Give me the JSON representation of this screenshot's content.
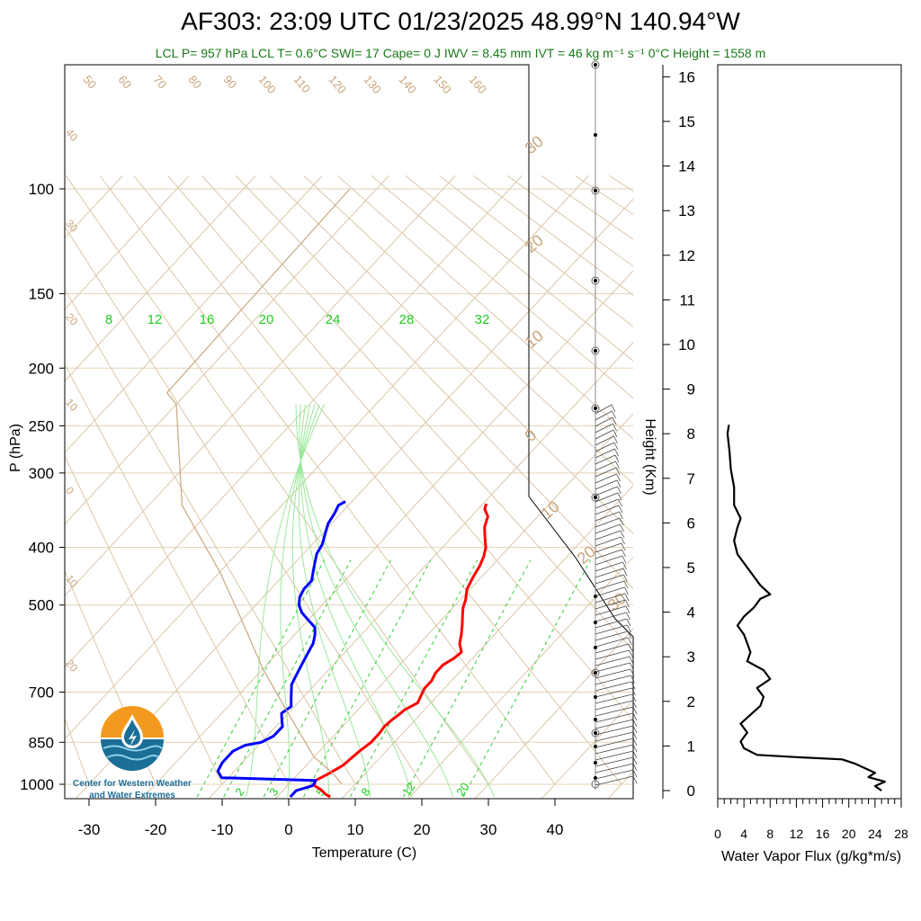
{
  "title": "AF303: 23:09 UTC 01/23/2025  48.99°N 140.94°W",
  "subtitle": "LCL P= 957 hPa  LCL T= 0.6°C  SWI= 17  Cape= 0 J  IWV = 8.45 mm  IVT = 46 kg m⁻¹ s⁻¹  0°C Height = 1558 m",
  "logo": {
    "line1": "Center for Western Weather",
    "line2": "and Water Extremes"
  },
  "chart_data": [
    {
      "type": "line",
      "name": "skew-T diagram",
      "xlabel": "Temperature (C)",
      "ylabel": "P (hPa)",
      "ylabel_right": "Height (Km)",
      "x_ticks": [
        -30,
        -20,
        -10,
        0,
        10,
        20,
        30,
        40
      ],
      "y_ticks": [
        100,
        150,
        200,
        250,
        300,
        400,
        500,
        700,
        850,
        1000
      ],
      "height_ticks": [
        0,
        1,
        2,
        3,
        4,
        5,
        6,
        7,
        8,
        9,
        10,
        11,
        12,
        13,
        14,
        15,
        16
      ],
      "mixing_ratio_labels": [
        "8",
        "12",
        "16",
        "20",
        "24",
        "28",
        "32"
      ],
      "mixing_ratio_bottom_labels": [
        "2",
        "3",
        "5",
        "8",
        "12",
        "20"
      ],
      "potential_temp_labels": [
        "50",
        "60",
        "70",
        "80",
        "90",
        "100",
        "110",
        "120",
        "130",
        "140",
        "150",
        "160"
      ],
      "left_isotherm_labels": [
        "40",
        "30",
        "20",
        "10",
        "0",
        "10",
        "20"
      ],
      "right_isotherm_labels": [
        "30",
        "20",
        "10",
        "0",
        "10",
        "20",
        "30"
      ],
      "series": [
        {
          "name": "Temperature",
          "color": "#ff0000",
          "points": [
            [
              8,
              1050
            ],
            [
              7,
              1040
            ],
            [
              5.5,
              1020
            ],
            [
              4,
              1005
            ],
            [
              3.5,
              985
            ],
            [
              4.5,
              960
            ],
            [
              5.5,
              930
            ],
            [
              6,
              880
            ],
            [
              6.5,
              850
            ],
            [
              6.5,
              820
            ],
            [
              6.3,
              800
            ],
            [
              6.5,
              780
            ],
            [
              6.8,
              765
            ],
            [
              7,
              750
            ],
            [
              8,
              730
            ],
            [
              7.5,
              710
            ],
            [
              7,
              690
            ],
            [
              7,
              670
            ],
            [
              6.5,
              650
            ],
            [
              6.5,
              630
            ],
            [
              7.2,
              615
            ],
            [
              7.5,
              600
            ],
            [
              6,
              580
            ],
            [
              5,
              560
            ],
            [
              3.8,
              540
            ],
            [
              2.5,
              520
            ],
            [
              1.5,
              505
            ],
            [
              0.8,
              490
            ],
            [
              -0.5,
              470
            ],
            [
              -1.2,
              450
            ],
            [
              -1.8,
              430
            ],
            [
              -2.5,
              415
            ],
            [
              -3.5,
              400
            ],
            [
              -5,
              385
            ],
            [
              -6.5,
              370
            ],
            [
              -7.5,
              355
            ],
            [
              -9,
              345
            ],
            [
              -9.5,
              338
            ]
          ]
        },
        {
          "name": "Dew point",
          "color": "#0000ff",
          "points": [
            [
              2,
              1050
            ],
            [
              2,
              1040
            ],
            [
              2,
              1025
            ],
            [
              3.8,
              1005
            ],
            [
              3.5,
              985
            ],
            [
              -11,
              975
            ],
            [
              -12.5,
              950
            ],
            [
              -13,
              920
            ],
            [
              -13,
              880
            ],
            [
              -12,
              860
            ],
            [
              -10,
              850
            ],
            [
              -9,
              830
            ],
            [
              -9,
              800
            ],
            [
              -10,
              780
            ],
            [
              -11,
              760
            ],
            [
              -10.5,
              740
            ],
            [
              -11.5,
              720
            ],
            [
              -12.5,
              700
            ],
            [
              -13.5,
              680
            ],
            [
              -14,
              660
            ],
            [
              -14.5,
              640
            ],
            [
              -15,
              620
            ],
            [
              -15.5,
              600
            ],
            [
              -16,
              580
            ],
            [
              -17,
              560
            ],
            [
              -18,
              545
            ],
            [
              -20,
              530
            ],
            [
              -22,
              515
            ],
            [
              -23.5,
              500
            ],
            [
              -24.5,
              485
            ],
            [
              -25,
              470
            ],
            [
              -25,
              455
            ],
            [
              -26,
              440
            ],
            [
              -27,
              425
            ],
            [
              -28,
              410
            ],
            [
              -28.5,
              395
            ],
            [
              -29.5,
              380
            ],
            [
              -30.5,
              365
            ],
            [
              -31,
              350
            ],
            [
              -31.5,
              340
            ],
            [
              -31,
              335
            ]
          ]
        },
        {
          "name": "Parcel path",
          "color": "#c8a882",
          "points": [
            [
              8,
              1000
            ],
            [
              5,
              957
            ],
            [
              0,
              900
            ],
            [
              -10,
              760
            ],
            [
              -20,
              640
            ],
            [
              -30,
              530
            ],
            [
              -40,
              440
            ],
            [
              -55,
              340
            ],
            [
              -70,
              230
            ],
            [
              -73,
              220
            ],
            [
              -74,
              100
            ]
          ]
        }
      ],
      "wind_barbs": "present along right side, 300-1000 hPa"
    },
    {
      "type": "line",
      "name": "water vapor flux profile",
      "xlabel": "Water Vapor Flux (g/kg*m/s)",
      "x_ticks": [
        0,
        4,
        8,
        12,
        16,
        20,
        24,
        28
      ],
      "xlim": [
        0,
        28
      ],
      "ylim_km": [
        0,
        16
      ],
      "series": [
        {
          "name": "Water Vapor Flux",
          "color": "#000000",
          "points": [
            [
              25,
              0.0
            ],
            [
              24,
              0.1
            ],
            [
              25.5,
              0.2
            ],
            [
              23,
              0.3
            ],
            [
              24,
              0.4
            ],
            [
              21,
              0.6
            ],
            [
              19,
              0.7
            ],
            [
              12,
              0.75
            ],
            [
              6,
              0.8
            ],
            [
              4,
              0.95
            ],
            [
              3.5,
              1.1
            ],
            [
              4.5,
              1.3
            ],
            [
              3.5,
              1.5
            ],
            [
              5,
              1.7
            ],
            [
              6.5,
              1.9
            ],
            [
              7,
              2.1
            ],
            [
              6,
              2.3
            ],
            [
              8,
              2.5
            ],
            [
              7,
              2.7
            ],
            [
              4.5,
              2.9
            ],
            [
              5,
              3.1
            ],
            [
              4.5,
              3.3
            ],
            [
              4,
              3.5
            ],
            [
              3,
              3.7
            ],
            [
              4,
              3.9
            ],
            [
              5.5,
              4.1
            ],
            [
              6.5,
              4.3
            ],
            [
              8,
              4.4
            ],
            [
              6.5,
              4.6
            ],
            [
              5.5,
              4.8
            ],
            [
              4.5,
              5.0
            ],
            [
              3,
              5.3
            ],
            [
              2.5,
              5.6
            ],
            [
              3,
              5.9
            ],
            [
              3.5,
              6.1
            ],
            [
              2.5,
              6.4
            ],
            [
              2.5,
              6.8
            ],
            [
              2,
              7.2
            ],
            [
              1.8,
              7.6
            ],
            [
              1.5,
              8.0
            ],
            [
              1.7,
              8.2
            ]
          ]
        }
      ]
    }
  ]
}
